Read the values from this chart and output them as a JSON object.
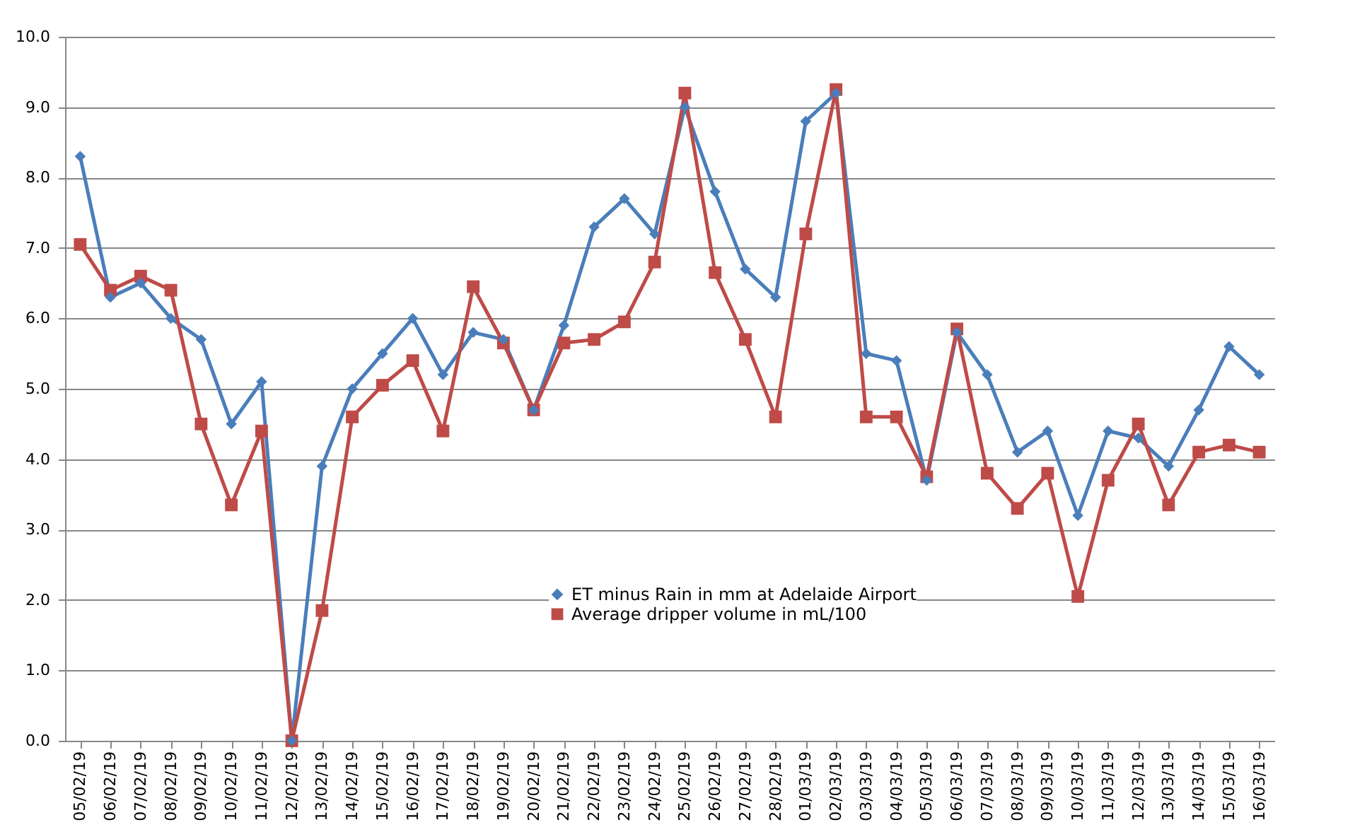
{
  "chart_data": {
    "type": "line",
    "categories": [
      "05/02/19",
      "06/02/19",
      "07/02/19",
      "08/02/19",
      "09/02/19",
      "10/02/19",
      "11/02/19",
      "12/02/19",
      "13/02/19",
      "14/02/19",
      "15/02/19",
      "16/02/19",
      "17/02/19",
      "18/02/19",
      "19/02/19",
      "20/02/19",
      "21/02/19",
      "22/02/19",
      "23/02/19",
      "24/02/19",
      "25/02/19",
      "26/02/19",
      "27/02/19",
      "28/02/19",
      "01/03/19",
      "02/03/19",
      "03/03/19",
      "04/03/19",
      "05/03/19",
      "06/03/19",
      "07/03/19",
      "08/03/19",
      "09/03/19",
      "10/03/19",
      "11/03/19",
      "12/03/19",
      "13/03/19",
      "14/03/19",
      "15/03/19",
      "16/03/19"
    ],
    "series": [
      {
        "name": "ET minus Rain in mm at Adelaide Airport",
        "color": "#4a7ebb",
        "marker": "diamond",
        "values": [
          8.3,
          6.3,
          6.5,
          6.0,
          5.7,
          4.5,
          5.1,
          0.0,
          3.9,
          5.0,
          5.5,
          6.0,
          5.2,
          5.8,
          5.7,
          4.7,
          5.9,
          7.3,
          7.7,
          7.2,
          9.0,
          7.8,
          6.7,
          6.3,
          8.8,
          9.2,
          5.5,
          5.4,
          3.7,
          5.8,
          5.2,
          4.1,
          4.4,
          3.2,
          4.4,
          4.3,
          3.9,
          4.7,
          5.6,
          5.2
        ]
      },
      {
        "name": "Average dripper volume in mL/100",
        "color": "#be4b48",
        "marker": "square",
        "values": [
          7.05,
          6.4,
          6.6,
          6.4,
          4.5,
          3.35,
          4.4,
          0.0,
          1.85,
          4.6,
          5.05,
          5.4,
          4.4,
          6.45,
          5.65,
          4.7,
          5.65,
          5.7,
          5.95,
          6.8,
          9.2,
          6.65,
          5.7,
          4.6,
          7.2,
          9.25,
          4.6,
          4.6,
          3.75,
          5.85,
          3.8,
          3.3,
          3.8,
          2.05,
          3.7,
          4.5,
          3.35,
          4.1,
          4.2,
          4.1
        ]
      }
    ],
    "ylim": [
      0,
      10
    ],
    "yticks": [
      {
        "value": 0,
        "label": "0.0"
      },
      {
        "value": 1,
        "label": "1.0"
      },
      {
        "value": 2,
        "label": "2.0"
      },
      {
        "value": 3,
        "label": "3.0"
      },
      {
        "value": 4,
        "label": "4.0"
      },
      {
        "value": 5,
        "label": "5.0"
      },
      {
        "value": 6,
        "label": "6.0"
      },
      {
        "value": 7,
        "label": "7.0"
      },
      {
        "value": 8,
        "label": "8.0"
      },
      {
        "value": 9,
        "label": "9.0"
      },
      {
        "value": 10,
        "label": "10.0"
      }
    ],
    "grid": "y",
    "legend": "bottom",
    "line_style": "solid"
  }
}
